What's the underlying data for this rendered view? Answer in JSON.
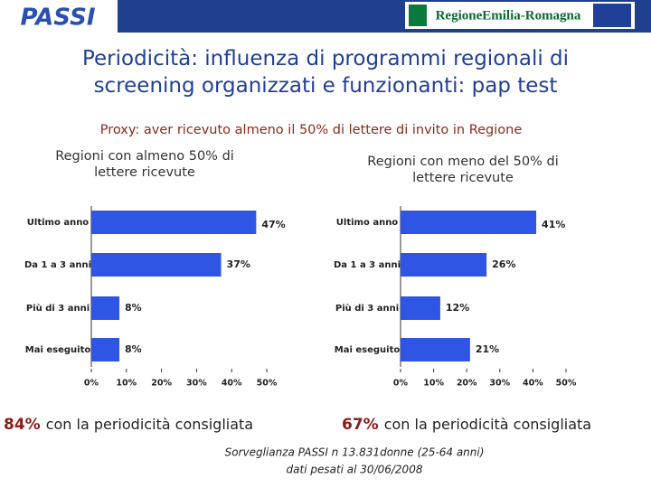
{
  "header": {
    "logo": "PASSI",
    "region": "RegioneEmilia-Romagna"
  },
  "title": "Periodicità: influenza di programmi regionali di screening organizzati e funzionanti: pap test",
  "subtitle": "Proxy: aver ricevuto almeno il 50% di lettere di invito in Regione",
  "chart_data": [
    {
      "type": "barh",
      "title": "Regioni con almeno 50% di lettere ricevute",
      "categories": [
        "Ultimo anno",
        "Da 1 a 3 anni",
        "Più di 3 anni",
        "Mai eseguito"
      ],
      "values": [
        47,
        37,
        8,
        8
      ],
      "value_labels": [
        "47%",
        "37%",
        "8%",
        "8%"
      ],
      "color": "#2f55e4",
      "xlim": [
        0,
        50
      ],
      "xticks": [
        {
          "value": 0,
          "label": "0%"
        },
        {
          "value": 10,
          "label": "10%"
        },
        {
          "value": 20,
          "label": "20%"
        },
        {
          "value": 30,
          "label": "30%"
        },
        {
          "value": 40,
          "label": "40%"
        },
        {
          "value": 50,
          "label": "50%"
        }
      ]
    },
    {
      "type": "barh",
      "title": "Regioni con meno del 50% di lettere ricevute",
      "categories": [
        "Ultimo anno",
        "Da 1 a 3 anni",
        "Più di 3 anni",
        "Mai eseguito"
      ],
      "values": [
        41,
        26,
        12,
        21
      ],
      "value_labels": [
        "41%",
        "26%",
        "12%",
        "21%"
      ],
      "color": "#2f55e4",
      "xlim": [
        0,
        50
      ],
      "xticks": [
        {
          "value": 0,
          "label": "0%"
        },
        {
          "value": 10,
          "label": "10%"
        },
        {
          "value": 20,
          "label": "20%"
        },
        {
          "value": 30,
          "label": "30%"
        },
        {
          "value": 40,
          "label": "40%"
        },
        {
          "value": 50,
          "label": "50%"
        }
      ]
    }
  ],
  "conclusions": [
    {
      "figure": "84%",
      "text": "con la periodicità consigliata"
    },
    {
      "figure": "67%",
      "text": "con la periodicità consigliata"
    }
  ],
  "footer": [
    "Sorveglianza PASSI n 13.831donne (25-64 anni)",
    "dati pesati al 30/06/2008"
  ]
}
